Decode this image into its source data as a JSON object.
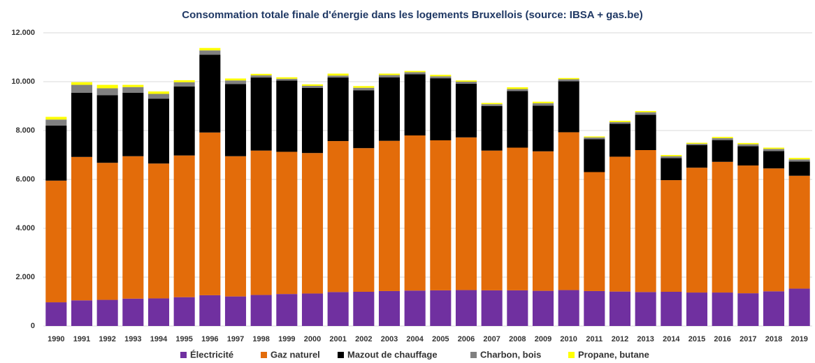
{
  "chart_data": {
    "type": "stacked_bar",
    "title": "Consommation totale finale d'énergie dans les logements Bruxellois (source: IBSA + gas.be)",
    "categories": [
      "1990",
      "1991",
      "1992",
      "1993",
      "1994",
      "1995",
      "1996",
      "1997",
      "1998",
      "1999",
      "2000",
      "2001",
      "2002",
      "2003",
      "2004",
      "2005",
      "2006",
      "2007",
      "2008",
      "2009",
      "2010",
      "2011",
      "2012",
      "2013",
      "2014",
      "2015",
      "2016",
      "2017",
      "2018",
      "2019"
    ],
    "series": [
      {
        "name": "Électricité",
        "color": "#7030a0",
        "values": [
          970,
          1050,
          1070,
          1120,
          1130,
          1180,
          1260,
          1210,
          1270,
          1310,
          1330,
          1390,
          1400,
          1430,
          1450,
          1460,
          1470,
          1460,
          1460,
          1440,
          1470,
          1430,
          1410,
          1390,
          1400,
          1370,
          1370,
          1340,
          1420,
          1530
        ]
      },
      {
        "name": "Gaz naturel",
        "color": "#e36c0a",
        "values": [
          4980,
          5870,
          5610,
          5830,
          5520,
          5800,
          6660,
          5740,
          5910,
          5820,
          5750,
          6180,
          5880,
          6150,
          6350,
          6140,
          6250,
          5720,
          5840,
          5710,
          6460,
          4870,
          5520,
          5810,
          4570,
          5110,
          5350,
          5230,
          5030,
          4620
        ]
      },
      {
        "name": "Mazout de chauffage",
        "color": "#000000",
        "values": [
          2250,
          2630,
          2770,
          2600,
          2650,
          2820,
          3180,
          2950,
          2990,
          2920,
          2670,
          2600,
          2370,
          2600,
          2500,
          2540,
          2200,
          1820,
          2320,
          1870,
          2090,
          1350,
          1350,
          1450,
          900,
          920,
          890,
          790,
          710,
          580
        ]
      },
      {
        "name": "Charbon, bois",
        "color": "#808080",
        "values": [
          250,
          320,
          280,
          230,
          200,
          180,
          180,
          150,
          90,
          70,
          80,
          80,
          100,
          90,
          90,
          80,
          80,
          80,
          80,
          100,
          80,
          70,
          70,
          100,
          80,
          60,
          80,
          80,
          90,
          90
        ]
      },
      {
        "name": "Propane, butane",
        "color": "#ffff00",
        "values": [
          110,
          110,
          140,
          90,
          100,
          80,
          100,
          80,
          60,
          60,
          60,
          80,
          70,
          60,
          50,
          60,
          50,
          50,
          70,
          60,
          50,
          40,
          50,
          50,
          50,
          40,
          50,
          50,
          50,
          60
        ]
      }
    ],
    "ylim": [
      0,
      12000
    ],
    "yticks": [
      0,
      {
        "value": 2000,
        "label": "2.000"
      },
      {
        "value": 4000,
        "label": "4.000"
      },
      {
        "value": 6000,
        "label": "6.000"
      },
      {
        "value": 8000,
        "label": "8.000"
      },
      {
        "value": 10000,
        "label": "10.000"
      },
      {
        "value": 12000,
        "label": "12.000"
      }
    ],
    "grid": true
  }
}
